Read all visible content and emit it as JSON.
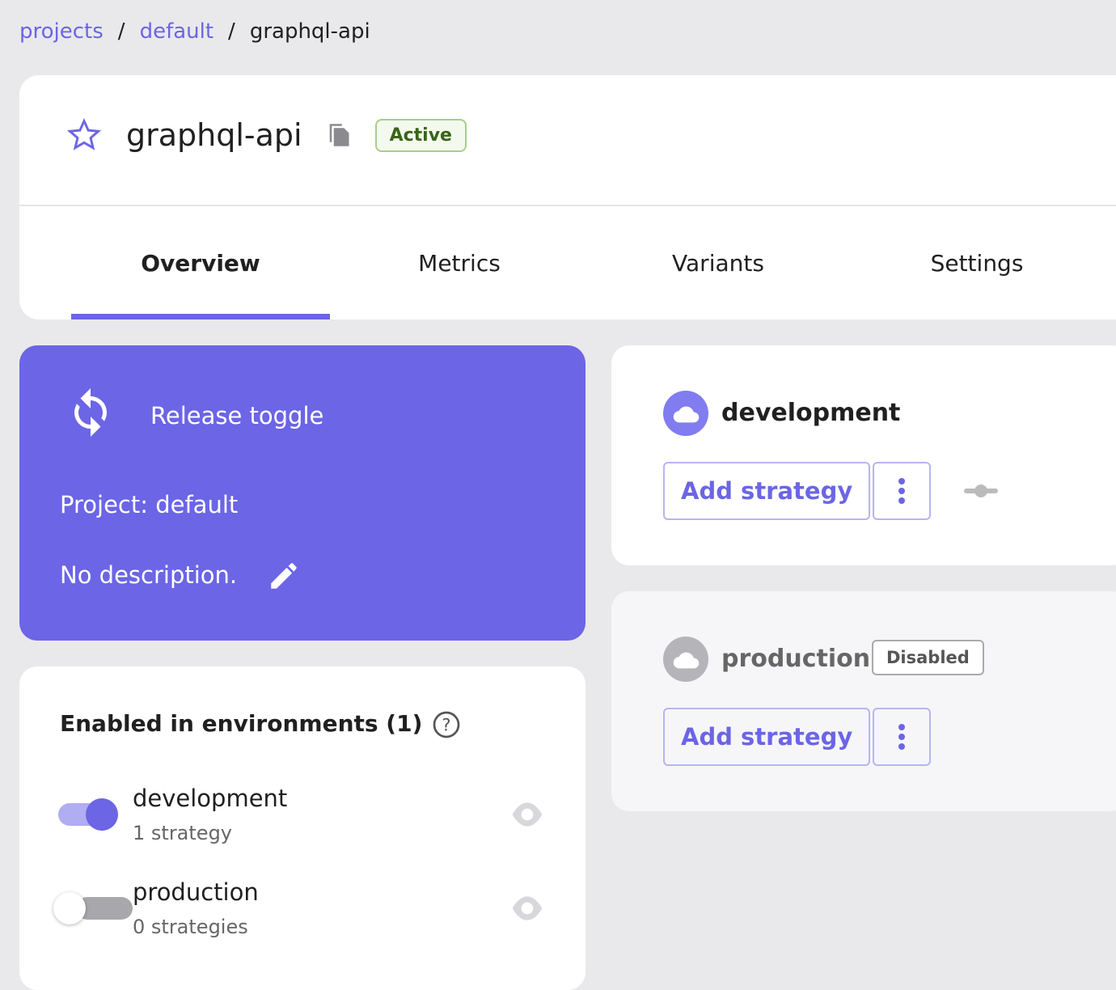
{
  "breadcrumb": {
    "items": [
      "projects",
      "default"
    ],
    "current": "graphql-api",
    "sep": "/"
  },
  "header": {
    "title": "graphql-api",
    "status": "Active"
  },
  "tabs": [
    "Overview",
    "Metrics",
    "Variants",
    "Settings"
  ],
  "release": {
    "type": "Release toggle",
    "project": "Project: default",
    "description": "No description."
  },
  "environments_panel": {
    "title": "Enabled in environments (1)",
    "items": [
      {
        "name": "development",
        "strategies": "1 strategy",
        "enabled": true
      },
      {
        "name": "production",
        "strategies": "0 strategies",
        "enabled": false
      }
    ]
  },
  "env_cards": [
    {
      "name": "development",
      "add": "Add strategy"
    },
    {
      "name": "production",
      "badge": "Disabled",
      "add": "Add strategy"
    }
  ],
  "colors": {
    "accent": "#6c65e5",
    "active_badge": "#3a6417"
  }
}
